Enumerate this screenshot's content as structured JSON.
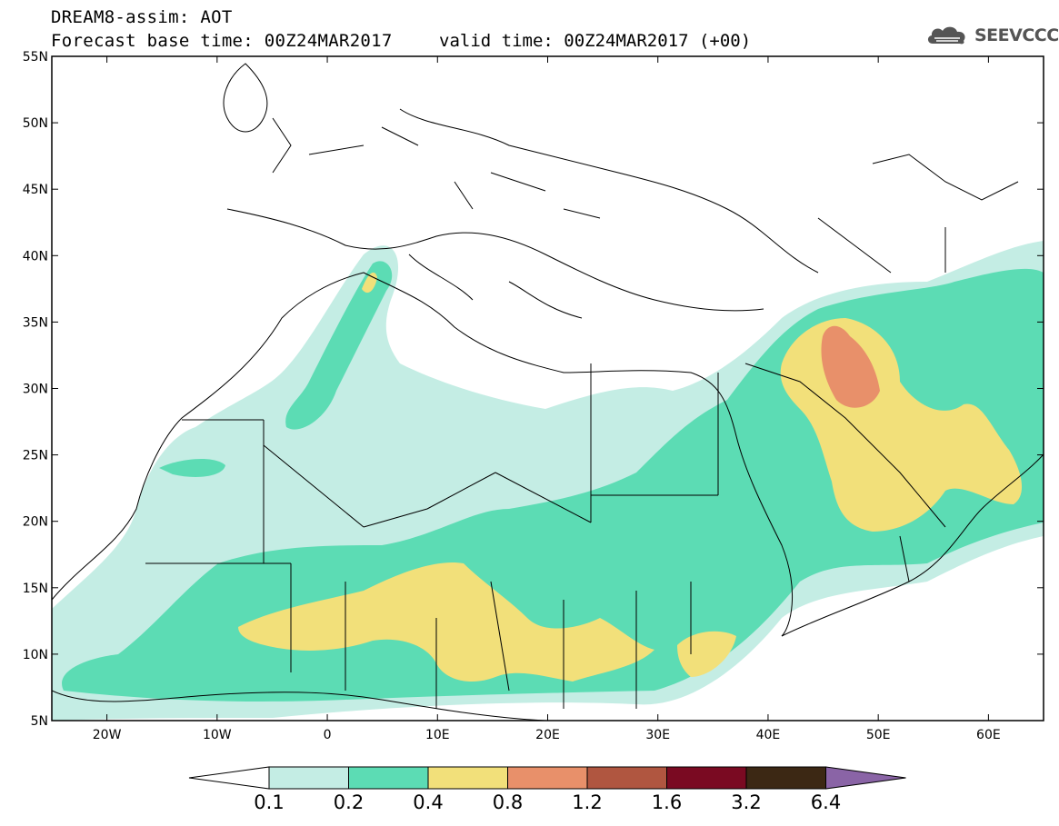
{
  "header": {
    "line1": "DREAM8-assim: AOT",
    "line2": "Forecast base time: 00Z24MAR2017",
    "valid": "valid time: 00Z24MAR2017 (+00)"
  },
  "logo": {
    "text": "SEEVCCC",
    "icon": "cloud-icon"
  },
  "map": {
    "lon_range": [
      -25,
      65
    ],
    "lat_range": [
      5,
      55
    ],
    "lat_ticks": [
      "55N",
      "50N",
      "45N",
      "40N",
      "35N",
      "30N",
      "25N",
      "20N",
      "15N",
      "10N",
      "5N"
    ],
    "lon_ticks": [
      "20W",
      "10W",
      "0",
      "10E",
      "20E",
      "30E",
      "40E",
      "50E",
      "60E"
    ]
  },
  "colorbar": {
    "labels": [
      "0.1",
      "0.2",
      "0.4",
      "0.8",
      "1.2",
      "1.6",
      "3.2",
      "6.4"
    ],
    "colors": [
      "#ffffff",
      "#c4ede4",
      "#5cdcb4",
      "#f2e07a",
      "#e8906a",
      "#b05640",
      "#7a0a22",
      "#3c2814",
      "#8a64a6"
    ]
  }
}
